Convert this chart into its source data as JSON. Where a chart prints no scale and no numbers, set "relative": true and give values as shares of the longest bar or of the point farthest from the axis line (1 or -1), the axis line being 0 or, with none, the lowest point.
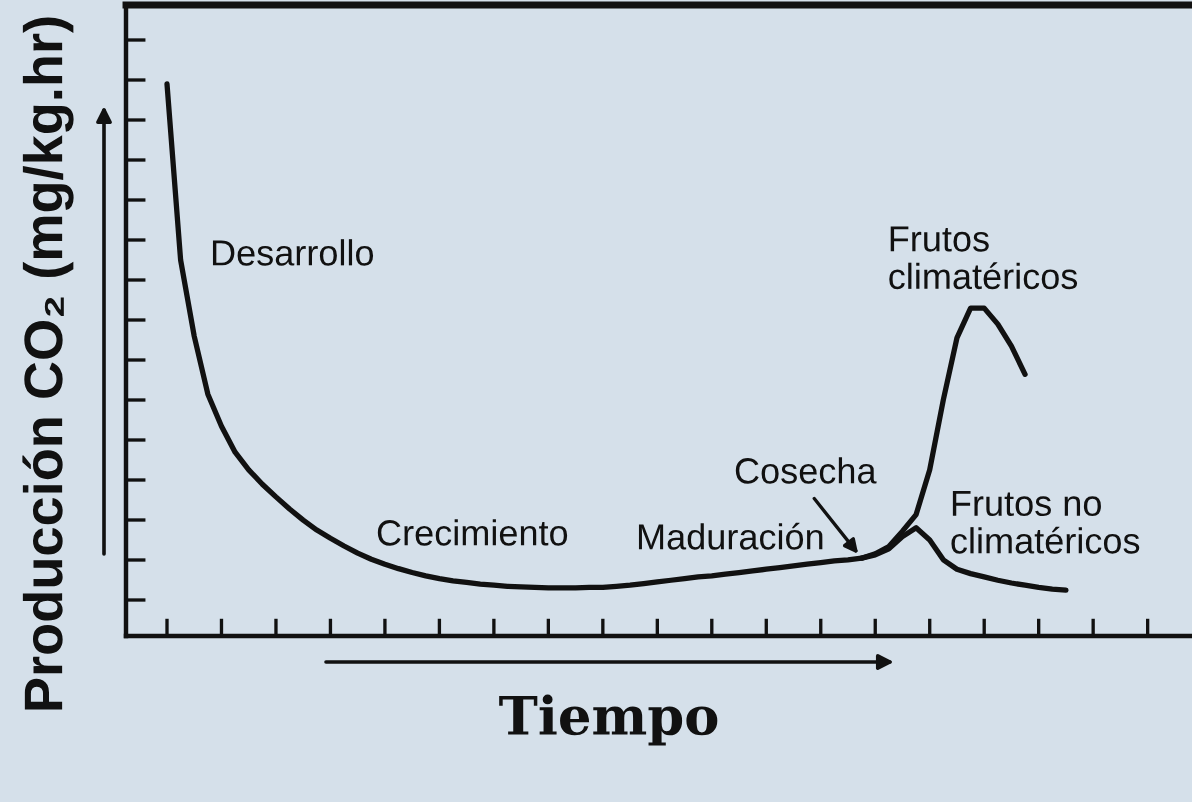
{
  "chart_data": {
    "type": "line",
    "relative": true,
    "xlabel": "Tiempo",
    "ylabel": "Producción CO₂ (mg/kg.hr)",
    "line_style": "solid",
    "legend": false,
    "categories": [
      null,
      null,
      null,
      null,
      null,
      null,
      null,
      null,
      null,
      null,
      null,
      null,
      null,
      null,
      null,
      null,
      null,
      null,
      null,
      null,
      null,
      null,
      null,
      null,
      null,
      null,
      null,
      null,
      null,
      null,
      null,
      null,
      null,
      null,
      null,
      null,
      null,
      null,
      null,
      null,
      null,
      null,
      null,
      null,
      null,
      null,
      null,
      null,
      null,
      null,
      null,
      null,
      null,
      null,
      null,
      null,
      null,
      null,
      null,
      null,
      null,
      null,
      null,
      null,
      null,
      null,
      null
    ],
    "series": [
      {
        "name": "Frutos\nclimatéricos",
        "color": "#111111",
        "values": [
          1.0,
          0.681,
          0.543,
          0.438,
          0.38,
          0.333,
          0.301,
          0.275,
          0.252,
          0.23,
          0.21,
          0.192,
          0.177,
          0.163,
          0.15,
          0.139,
          0.13,
          0.122,
          0.115,
          0.109,
          0.104,
          0.1,
          0.097,
          0.094,
          0.092,
          0.09,
          0.089,
          0.088,
          0.087,
          0.087,
          0.087,
          0.088,
          0.088,
          0.09,
          0.092,
          0.095,
          0.098,
          0.101,
          0.104,
          0.107,
          0.109,
          0.112,
          0.115,
          0.118,
          0.121,
          0.124,
          0.127,
          0.13,
          0.133,
          0.136,
          0.138,
          0.141,
          0.149,
          0.162,
          0.19,
          0.22,
          0.301,
          0.428,
          0.54,
          0.594,
          0.594,
          0.565,
          0.525,
          0.474,
          null,
          null,
          null
        ]
      },
      {
        "name": "Frutos no\nclimatéricos",
        "color": "#111111",
        "values": [
          null,
          null,
          null,
          null,
          null,
          null,
          null,
          null,
          null,
          null,
          null,
          null,
          null,
          null,
          null,
          null,
          null,
          null,
          null,
          null,
          null,
          null,
          null,
          null,
          null,
          null,
          null,
          null,
          null,
          null,
          null,
          null,
          null,
          null,
          null,
          null,
          null,
          null,
          null,
          null,
          null,
          null,
          null,
          null,
          null,
          null,
          null,
          null,
          null,
          null,
          null,
          0.141,
          0.147,
          0.158,
          0.18,
          0.196,
          0.174,
          0.138,
          0.121,
          0.113,
          0.107,
          0.101,
          0.096,
          0.092,
          0.088,
          0.085,
          0.083
        ]
      }
    ],
    "annotations": [
      "Desarrollo",
      "Crecimiento",
      "Maduración",
      "Cosecha"
    ]
  }
}
